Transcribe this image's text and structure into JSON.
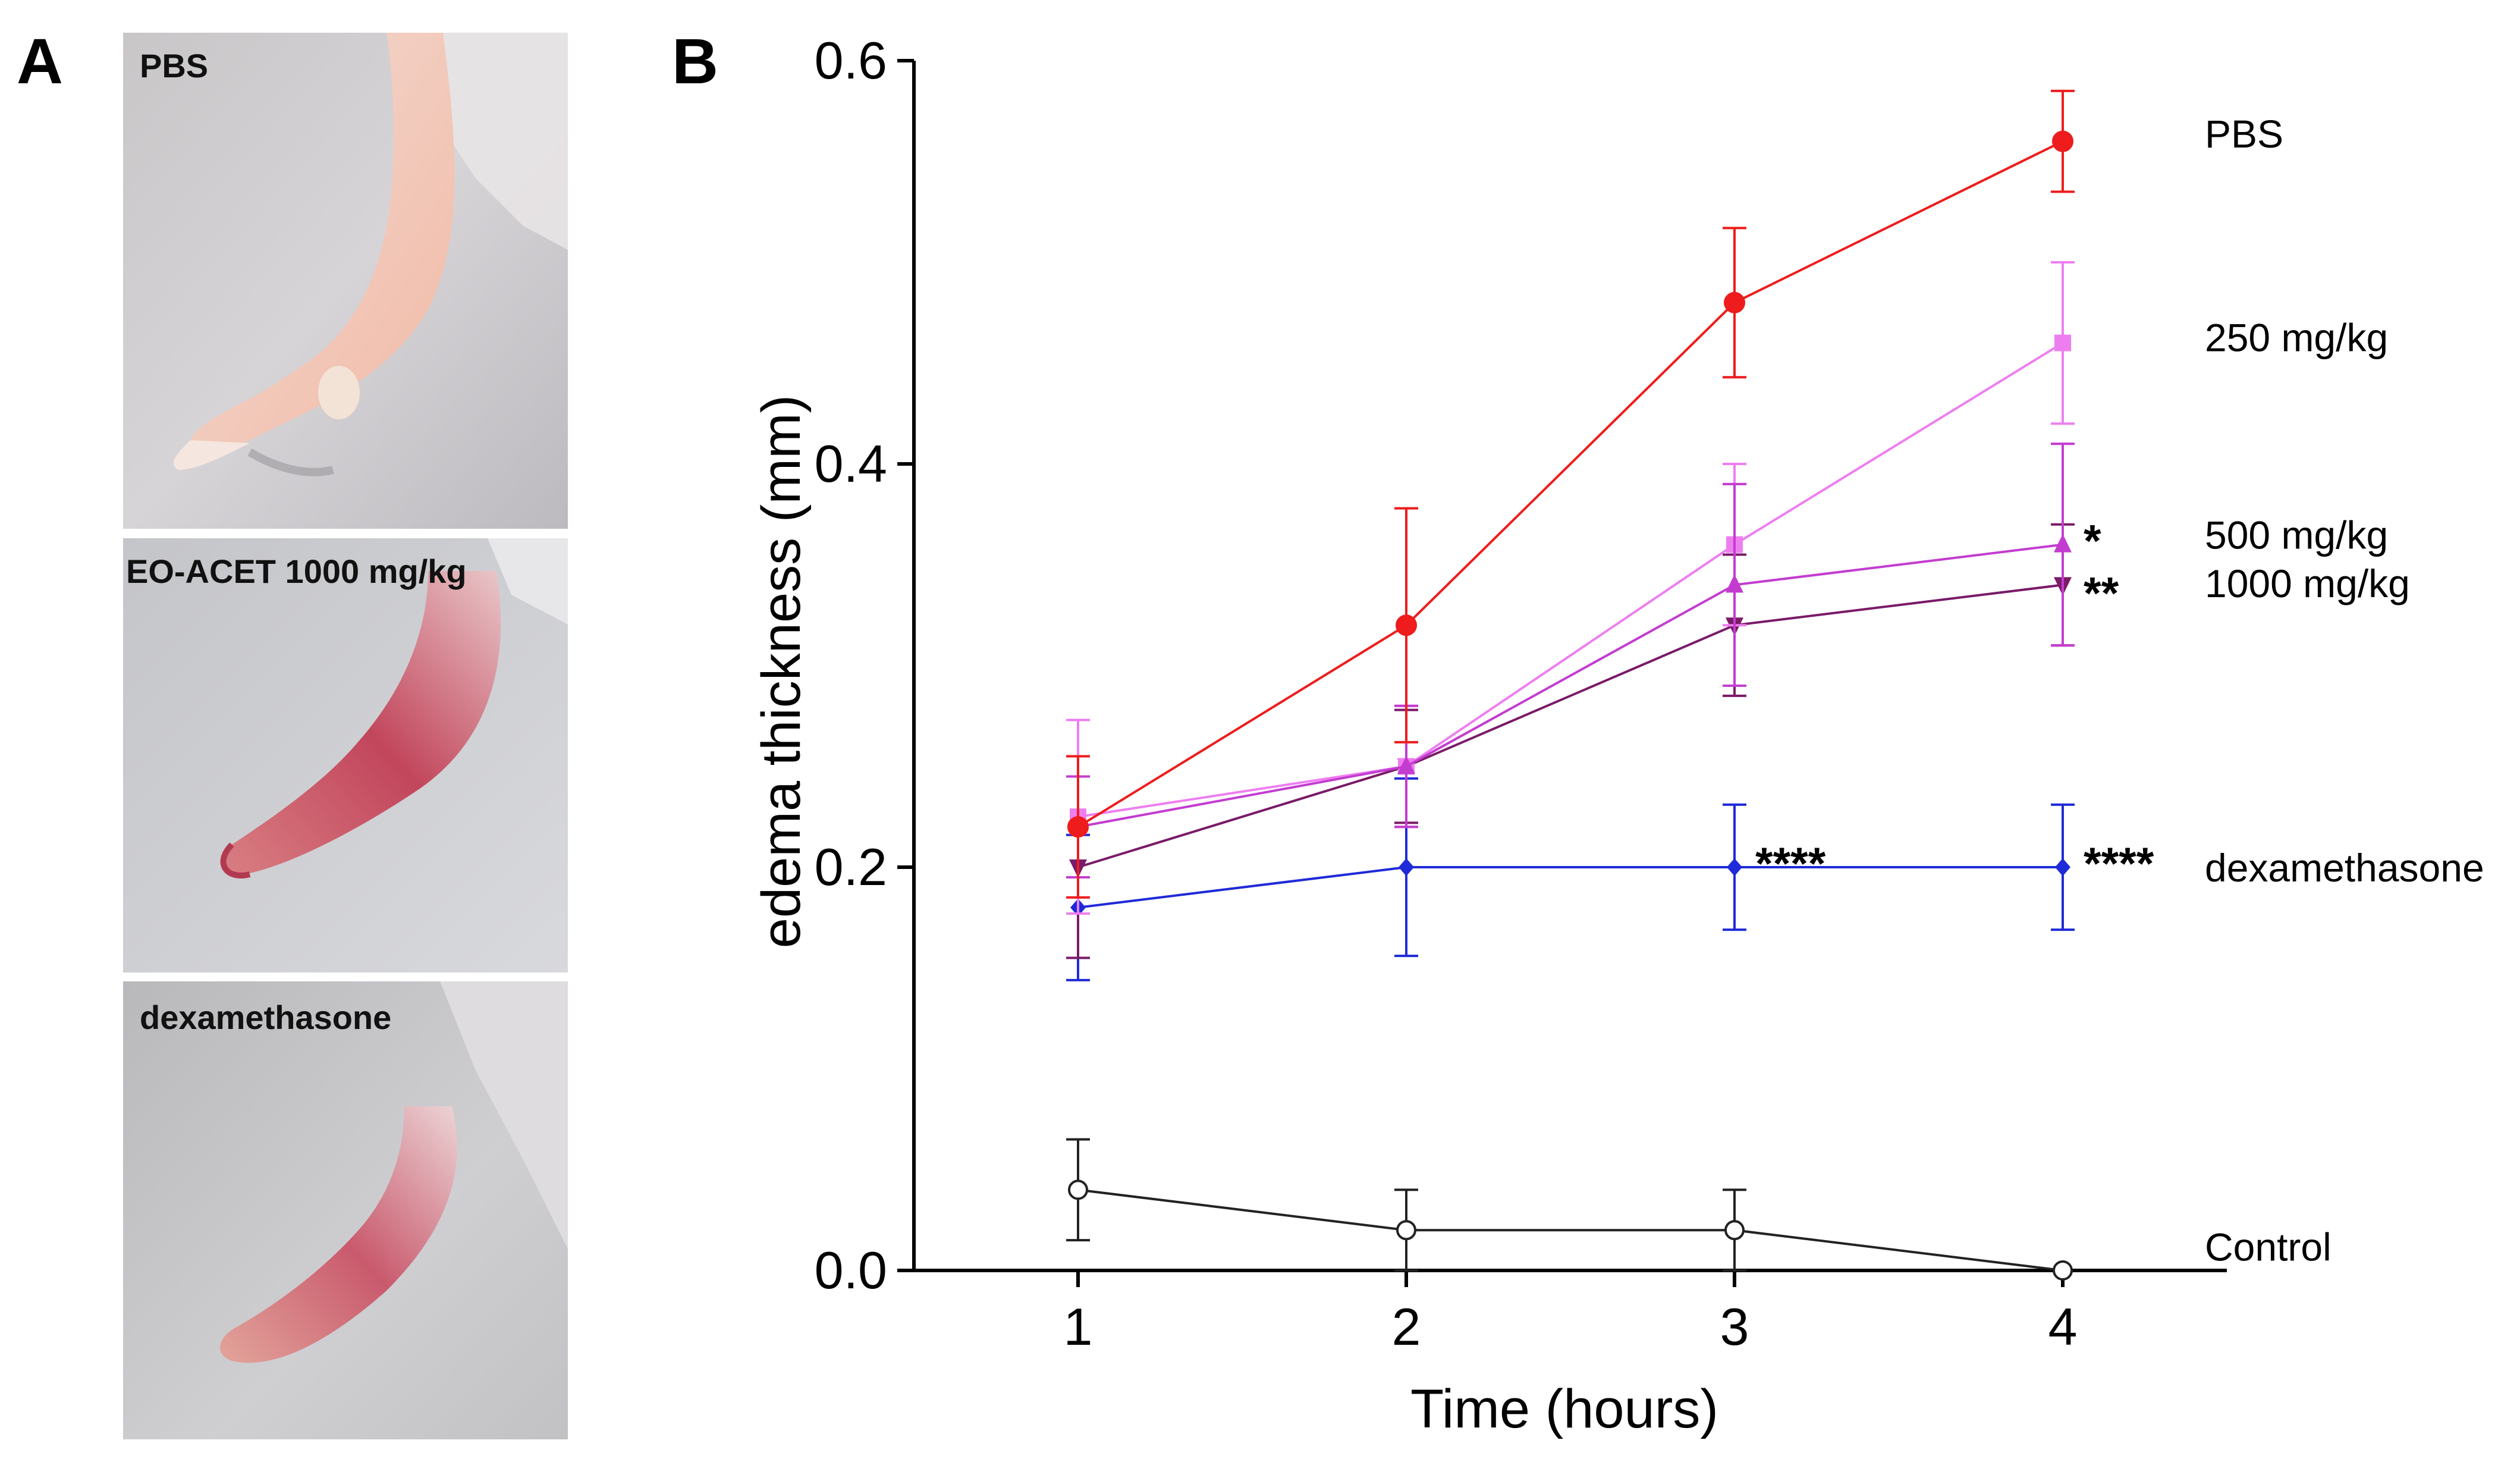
{
  "panel_a": {
    "letter": "A",
    "photos": [
      {
        "label": "PBS"
      },
      {
        "label": "EO-ACET 1000 mg/kg"
      },
      {
        "label": "dexamethasone"
      }
    ]
  },
  "panel_b": {
    "letter": "B"
  },
  "chart_data": {
    "type": "line",
    "title": "",
    "xlabel": "Time (hours)",
    "ylabel": "edema thickness (mm)",
    "x": [
      1,
      2,
      3,
      4
    ],
    "x_tick_labels": [
      "1",
      "2",
      "3",
      "4"
    ],
    "xlim": [
      0.5,
      4.5
    ],
    "ylim": [
      0.0,
      0.6
    ],
    "y_ticks": [
      0.0,
      0.2,
      0.4,
      0.6
    ],
    "y_tick_labels": [
      "0.0",
      "0.2",
      "0.4",
      "0.6"
    ],
    "grid": false,
    "legend_placement": "right (direct labels)",
    "series": [
      {
        "name": "PBS",
        "label": "PBS",
        "color": "#ee1c1c",
        "marker": "circle",
        "filled": true,
        "values": [
          0.22,
          0.32,
          0.48,
          0.56
        ],
        "errors": [
          0.035,
          0.058,
          0.037,
          0.025
        ],
        "label_value": 0.564
      },
      {
        "name": "250 mg/kg",
        "label": "250 mg/kg",
        "color": "#ee7ef0",
        "marker": "square",
        "filled": true,
        "values": [
          0.225,
          0.25,
          0.36,
          0.46
        ],
        "errors": [
          0.048,
          0.03,
          0.04,
          0.04
        ],
        "label_value": 0.463
      },
      {
        "name": "500 mg/kg",
        "label": "500 mg/kg",
        "color": "#c33cd0",
        "marker": "triangle-up",
        "filled": true,
        "values": [
          0.22,
          0.25,
          0.34,
          0.36
        ],
        "errors": [
          0.025,
          0.03,
          0.05,
          0.05
        ],
        "label_value": 0.365
      },
      {
        "name": "1000 mg/kg",
        "label": "1000 mg/kg",
        "color": "#7a1a68",
        "marker": "triangle-down",
        "filled": true,
        "values": [
          0.2,
          0.25,
          0.32,
          0.34
        ],
        "errors": [
          0.045,
          0.028,
          0.035,
          0.03
        ],
        "label_value": 0.341
      },
      {
        "name": "dexamethasone",
        "label": "dexamethasone",
        "color": "#1f2ad8",
        "marker": "diamond",
        "filled": true,
        "values": [
          0.18,
          0.2,
          0.2,
          0.2
        ],
        "errors": [
          0.036,
          0.044,
          0.031,
          0.031
        ],
        "label_value": 0.2
      },
      {
        "name": "Control",
        "label": "Control",
        "color": "#222222",
        "marker": "circle",
        "filled": false,
        "values": [
          0.04,
          0.02,
          0.02,
          0.0
        ],
        "errors": [
          0.025,
          0.02,
          0.02,
          0.0
        ],
        "label_value": 0.012
      }
    ],
    "annotations": [
      {
        "text": "****",
        "x": 3,
        "y": 0.2,
        "series": "dexamethasone"
      },
      {
        "text": "****",
        "x": 4,
        "y": 0.2,
        "series": "dexamethasone"
      },
      {
        "text": "*",
        "x": 4,
        "y": 0.36,
        "series": "500 mg/kg"
      },
      {
        "text": "**",
        "x": 4,
        "y": 0.34,
        "series": "1000 mg/kg"
      }
    ]
  }
}
